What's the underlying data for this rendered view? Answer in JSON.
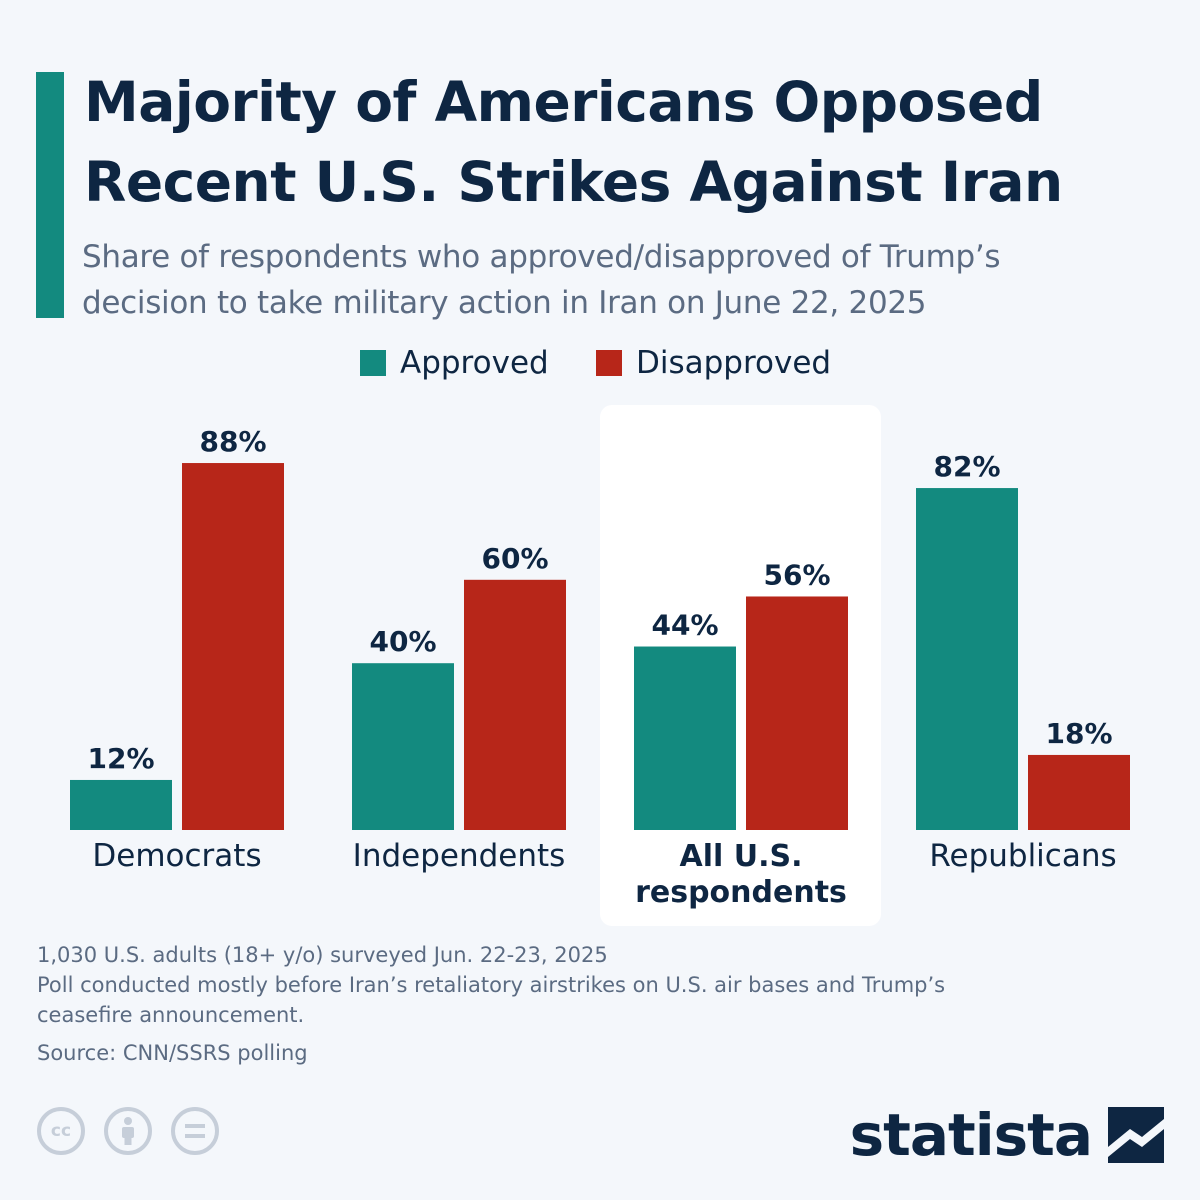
{
  "header": {
    "title_line1": "Majority of Americans Opposed",
    "title_line2": "Recent U.S. Strikes Against Iran",
    "subtitle_line1": "Share of respondents who approved/disapproved of Trump’s",
    "subtitle_line2": "decision to take military action in Iran on June 22, 2025"
  },
  "colors": {
    "approved": "#138a7f",
    "disapproved": "#b72619",
    "text": "#0e2642",
    "muted": "#5b6b82",
    "highlight": "#ffffff"
  },
  "chart_data": {
    "type": "bar",
    "categories": [
      "Democrats",
      "Independents",
      "All U.S. respondents",
      "Republicans"
    ],
    "highlighted_category": "All U.S. respondents",
    "series": [
      {
        "name": "Approved",
        "values": [
          12,
          40,
          44,
          82
        ],
        "labels": [
          "12%",
          "40%",
          "44%",
          "82%"
        ]
      },
      {
        "name": "Disapproved",
        "values": [
          88,
          60,
          56,
          18
        ],
        "labels": [
          "88%",
          "60%",
          "56%",
          "18%"
        ]
      }
    ],
    "ylim": [
      0,
      100
    ],
    "unit": "%",
    "grid": false,
    "legend": "top-center"
  },
  "footnotes": {
    "line1": "1,030 U.S. adults (18+ y/o) surveyed Jun. 22-23, 2025",
    "line2": "Poll conducted mostly before Iran’s retaliatory airstrikes on U.S. air bases and Trump’s",
    "line3": "ceasefire announcement.",
    "source": "Source: CNN/SSRS polling"
  },
  "license_icons": [
    "cc-icon",
    "attribution-icon",
    "no-derivatives-icon"
  ],
  "brand": {
    "name": "statista"
  }
}
